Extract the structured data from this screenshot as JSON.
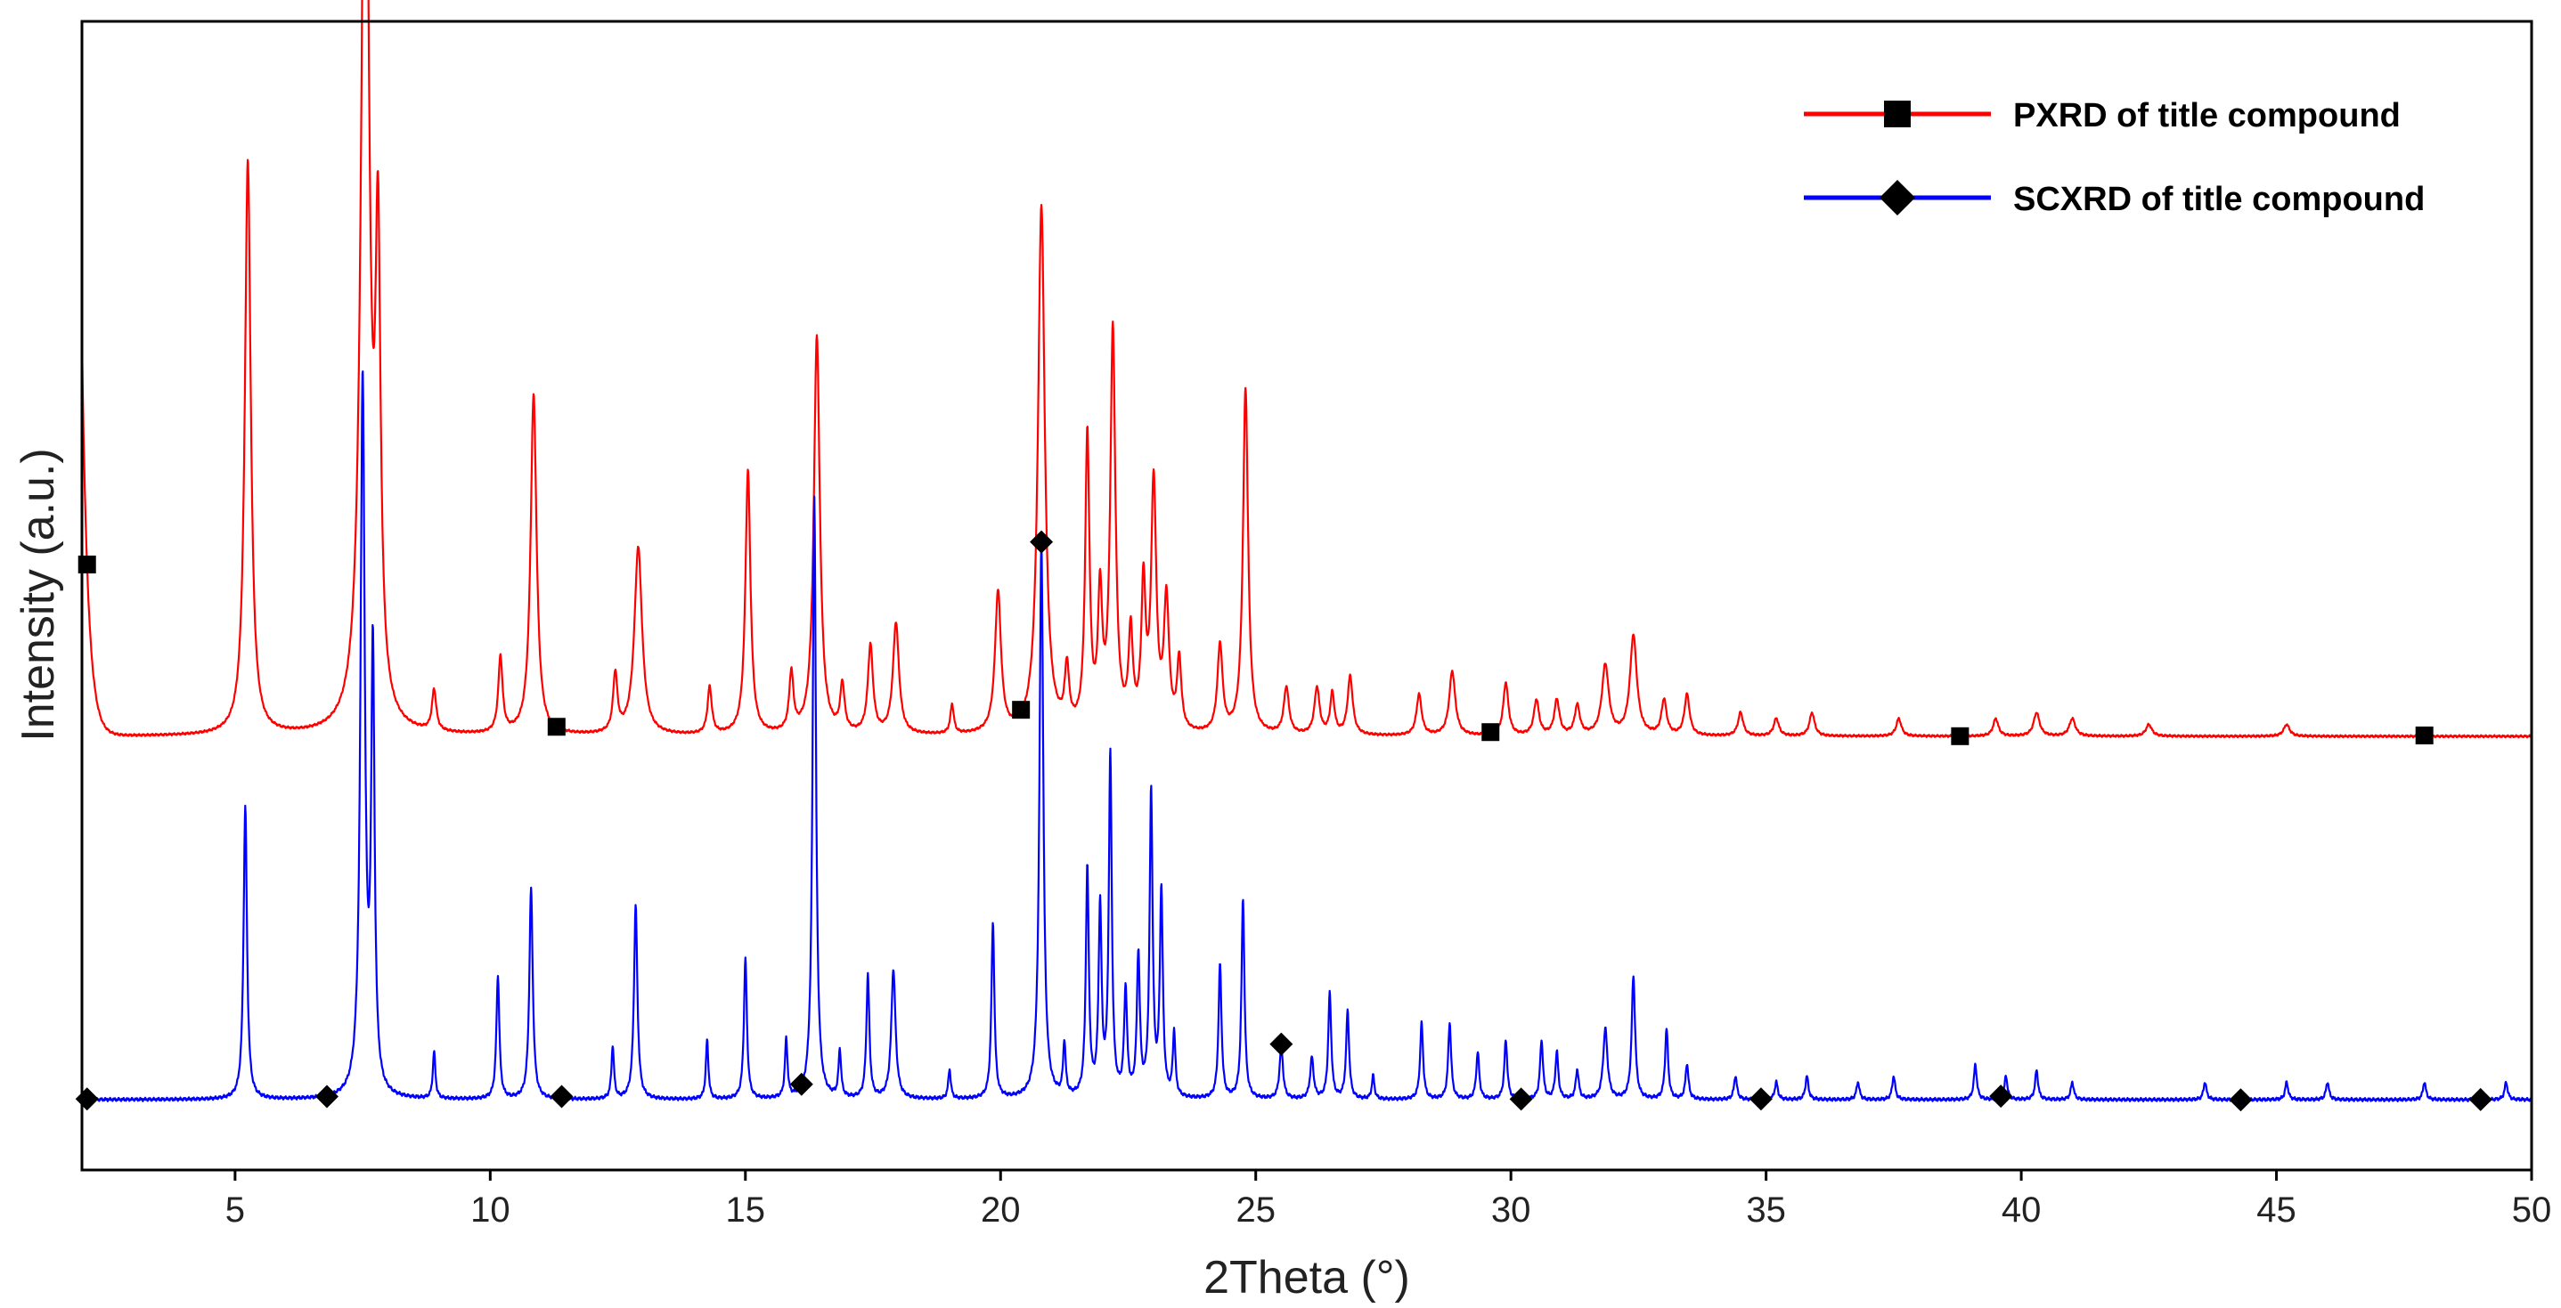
{
  "chart_data": {
    "type": "line",
    "title": "",
    "xlabel": "2Theta (°)",
    "ylabel": "Intensity (a.u.)",
    "xlim": [
      2,
      50
    ],
    "x_ticks": [
      5,
      10,
      15,
      20,
      25,
      30,
      35,
      40,
      45,
      50
    ],
    "y_ticks": [],
    "grid": false,
    "legend_position": "top-right",
    "series": [
      {
        "name": "PXRD of title compound",
        "color": "#ff0000",
        "marker": "square",
        "marker_x": [
          2.1,
          11.3,
          20.4,
          29.6,
          38.8,
          47.9
        ],
        "baseline": 0.62,
        "start_bump": 0.67,
        "noise": 0.002,
        "peaks": [
          [
            5.25,
            0.98,
            0.07
          ],
          [
            7.55,
            1.78,
            0.09
          ],
          [
            7.8,
            0.76,
            0.06
          ],
          [
            8.9,
            0.07,
            0.05
          ],
          [
            10.2,
            0.13,
            0.05
          ],
          [
            10.85,
            0.58,
            0.07
          ],
          [
            12.45,
            0.1,
            0.05
          ],
          [
            12.9,
            0.32,
            0.09
          ],
          [
            14.3,
            0.08,
            0.05
          ],
          [
            15.05,
            0.45,
            0.06
          ],
          [
            15.9,
            0.1,
            0.05
          ],
          [
            16.4,
            0.68,
            0.07
          ],
          [
            16.9,
            0.08,
            0.05
          ],
          [
            17.45,
            0.15,
            0.06
          ],
          [
            17.95,
            0.19,
            0.07
          ],
          [
            19.05,
            0.05,
            0.04
          ],
          [
            19.95,
            0.24,
            0.07
          ],
          [
            20.8,
            0.9,
            0.08
          ],
          [
            21.3,
            0.1,
            0.05
          ],
          [
            21.7,
            0.5,
            0.05
          ],
          [
            21.95,
            0.22,
            0.05
          ],
          [
            22.2,
            0.68,
            0.06
          ],
          [
            22.55,
            0.16,
            0.05
          ],
          [
            22.8,
            0.24,
            0.05
          ],
          [
            23.0,
            0.42,
            0.06
          ],
          [
            23.25,
            0.22,
            0.06
          ],
          [
            23.5,
            0.12,
            0.05
          ],
          [
            24.3,
            0.15,
            0.06
          ],
          [
            24.8,
            0.59,
            0.06
          ],
          [
            25.6,
            0.08,
            0.06
          ],
          [
            26.2,
            0.08,
            0.06
          ],
          [
            26.5,
            0.07,
            0.05
          ],
          [
            26.85,
            0.1,
            0.06
          ],
          [
            28.2,
            0.07,
            0.06
          ],
          [
            28.85,
            0.11,
            0.07
          ],
          [
            29.9,
            0.09,
            0.06
          ],
          [
            30.5,
            0.06,
            0.06
          ],
          [
            30.9,
            0.06,
            0.06
          ],
          [
            31.3,
            0.05,
            0.06
          ],
          [
            31.85,
            0.12,
            0.08
          ],
          [
            32.4,
            0.17,
            0.08
          ],
          [
            33.0,
            0.06,
            0.06
          ],
          [
            33.45,
            0.07,
            0.06
          ],
          [
            34.5,
            0.04,
            0.06
          ],
          [
            35.2,
            0.03,
            0.06
          ],
          [
            35.9,
            0.04,
            0.06
          ],
          [
            37.6,
            0.03,
            0.06
          ],
          [
            39.5,
            0.03,
            0.06
          ],
          [
            40.3,
            0.04,
            0.07
          ],
          [
            41.0,
            0.03,
            0.07
          ],
          [
            42.5,
            0.02,
            0.07
          ],
          [
            45.2,
            0.02,
            0.07
          ]
        ]
      },
      {
        "name": "SCXRD of title compound",
        "color": "#0000ff",
        "marker": "diamond",
        "marker_x": [
          2.1,
          6.8,
          11.4,
          16.1,
          20.8,
          25.5,
          30.2,
          34.9,
          39.6,
          44.3,
          49.0
        ],
        "baseline": 0.0,
        "start_bump": 0.0,
        "noise": 0.003,
        "peaks": [
          [
            5.2,
            0.5,
            0.04
          ],
          [
            7.5,
            1.22,
            0.05
          ],
          [
            7.7,
            0.74,
            0.04
          ],
          [
            8.9,
            0.08,
            0.03
          ],
          [
            10.15,
            0.21,
            0.035
          ],
          [
            10.8,
            0.36,
            0.04
          ],
          [
            12.4,
            0.09,
            0.03
          ],
          [
            12.85,
            0.33,
            0.04
          ],
          [
            14.25,
            0.1,
            0.03
          ],
          [
            15.0,
            0.24,
            0.035
          ],
          [
            15.8,
            0.1,
            0.03
          ],
          [
            16.35,
            1.03,
            0.04
          ],
          [
            16.85,
            0.08,
            0.03
          ],
          [
            17.4,
            0.21,
            0.035
          ],
          [
            17.9,
            0.22,
            0.05
          ],
          [
            19.0,
            0.05,
            0.03
          ],
          [
            19.85,
            0.3,
            0.035
          ],
          [
            20.8,
            0.95,
            0.045
          ],
          [
            21.25,
            0.09,
            0.03
          ],
          [
            21.7,
            0.39,
            0.035
          ],
          [
            21.95,
            0.32,
            0.035
          ],
          [
            22.15,
            0.58,
            0.035
          ],
          [
            22.45,
            0.18,
            0.035
          ],
          [
            22.7,
            0.24,
            0.035
          ],
          [
            22.95,
            0.52,
            0.035
          ],
          [
            23.15,
            0.35,
            0.035
          ],
          [
            23.4,
            0.11,
            0.03
          ],
          [
            24.3,
            0.23,
            0.035
          ],
          [
            24.75,
            0.34,
            0.035
          ],
          [
            25.5,
            0.09,
            0.04
          ],
          [
            26.1,
            0.07,
            0.04
          ],
          [
            26.45,
            0.18,
            0.035
          ],
          [
            26.8,
            0.15,
            0.035
          ],
          [
            27.3,
            0.04,
            0.03
          ],
          [
            28.25,
            0.13,
            0.035
          ],
          [
            28.8,
            0.13,
            0.035
          ],
          [
            29.35,
            0.08,
            0.035
          ],
          [
            29.9,
            0.1,
            0.035
          ],
          [
            30.6,
            0.1,
            0.035
          ],
          [
            30.9,
            0.08,
            0.035
          ],
          [
            31.3,
            0.05,
            0.035
          ],
          [
            31.85,
            0.12,
            0.05
          ],
          [
            32.4,
            0.21,
            0.04
          ],
          [
            33.05,
            0.12,
            0.035
          ],
          [
            33.45,
            0.06,
            0.035
          ],
          [
            34.4,
            0.04,
            0.035
          ],
          [
            35.2,
            0.03,
            0.035
          ],
          [
            35.8,
            0.04,
            0.035
          ],
          [
            36.8,
            0.03,
            0.035
          ],
          [
            37.5,
            0.04,
            0.035
          ],
          [
            39.1,
            0.06,
            0.035
          ],
          [
            39.7,
            0.04,
            0.035
          ],
          [
            40.3,
            0.05,
            0.035
          ],
          [
            41.0,
            0.03,
            0.035
          ],
          [
            43.6,
            0.03,
            0.035
          ],
          [
            45.2,
            0.03,
            0.035
          ],
          [
            46.0,
            0.03,
            0.035
          ],
          [
            47.9,
            0.03,
            0.035
          ],
          [
            49.5,
            0.03,
            0.035
          ]
        ]
      }
    ]
  }
}
